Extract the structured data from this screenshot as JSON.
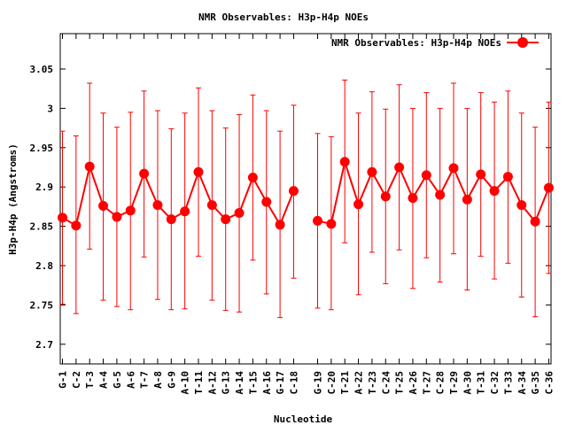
{
  "chart_data": {
    "type": "line",
    "title": "NMR Observables: H3p-H4p NOEs",
    "xlabel": "Nucleotide",
    "ylabel": "H3p-H4p (Angstroms)",
    "ylim": [
      2.675,
      3.095
    ],
    "yticks": [
      2.7,
      2.75,
      2.8,
      2.85,
      2.9,
      2.95,
      3,
      3.05
    ],
    "ytick_labels": [
      "2.7",
      "2.75",
      "2.8",
      "2.85",
      "2.9",
      "2.95",
      "3",
      "3.05"
    ],
    "grid": false,
    "legend_position": "top-right",
    "series_color": "#ff0000",
    "categories": [
      "G-1",
      "C-2",
      "T-3",
      "A-4",
      "G-5",
      "A-6",
      "T-7",
      "A-8",
      "G-9",
      "A-10",
      "T-11",
      "A-12",
      "G-13",
      "A-14",
      "T-15",
      "A-16",
      "G-17",
      "C-18",
      "G-19",
      "C-20",
      "T-21",
      "A-22",
      "T-23",
      "C-24",
      "T-25",
      "A-26",
      "T-27",
      "C-28",
      "T-29",
      "A-30",
      "T-31",
      "C-32",
      "T-33",
      "A-34",
      "G-35",
      "C-36"
    ],
    "series": [
      {
        "name": "NMR Observables: H3p-H4p NOEs",
        "segments": [
          [
            0,
            17
          ],
          [
            18,
            35
          ]
        ],
        "values": [
          2.861,
          2.851,
          2.926,
          2.876,
          2.862,
          2.87,
          2.917,
          2.877,
          2.859,
          2.869,
          2.919,
          2.877,
          2.859,
          2.867,
          2.912,
          2.881,
          2.852,
          2.895,
          2.857,
          2.853,
          2.932,
          2.878,
          2.919,
          2.888,
          2.925,
          2.886,
          2.915,
          2.89,
          2.924,
          2.884,
          2.916,
          2.895,
          2.913,
          2.877,
          2.856,
          2.899
        ],
        "err_low": [
          2.751,
          2.739,
          2.821,
          2.756,
          2.748,
          2.744,
          2.811,
          2.757,
          2.744,
          2.745,
          2.812,
          2.756,
          2.743,
          2.741,
          2.807,
          2.764,
          2.734,
          2.784,
          2.746,
          2.744,
          2.829,
          2.763,
          2.817,
          2.777,
          2.82,
          2.771,
          2.81,
          2.779,
          2.815,
          2.769,
          2.812,
          2.783,
          2.803,
          2.76,
          2.735,
          2.79
        ],
        "err_high": [
          2.971,
          2.965,
          3.032,
          2.994,
          2.976,
          2.995,
          3.022,
          2.997,
          2.974,
          2.994,
          3.026,
          2.997,
          2.975,
          2.992,
          3.017,
          2.997,
          2.971,
          3.004,
          2.968,
          2.964,
          3.036,
          2.994,
          3.021,
          2.999,
          3.03,
          3.0,
          3.02,
          3.0,
          3.032,
          3.0,
          3.02,
          3.008,
          3.022,
          2.994,
          2.976,
          3.008
        ]
      }
    ]
  }
}
